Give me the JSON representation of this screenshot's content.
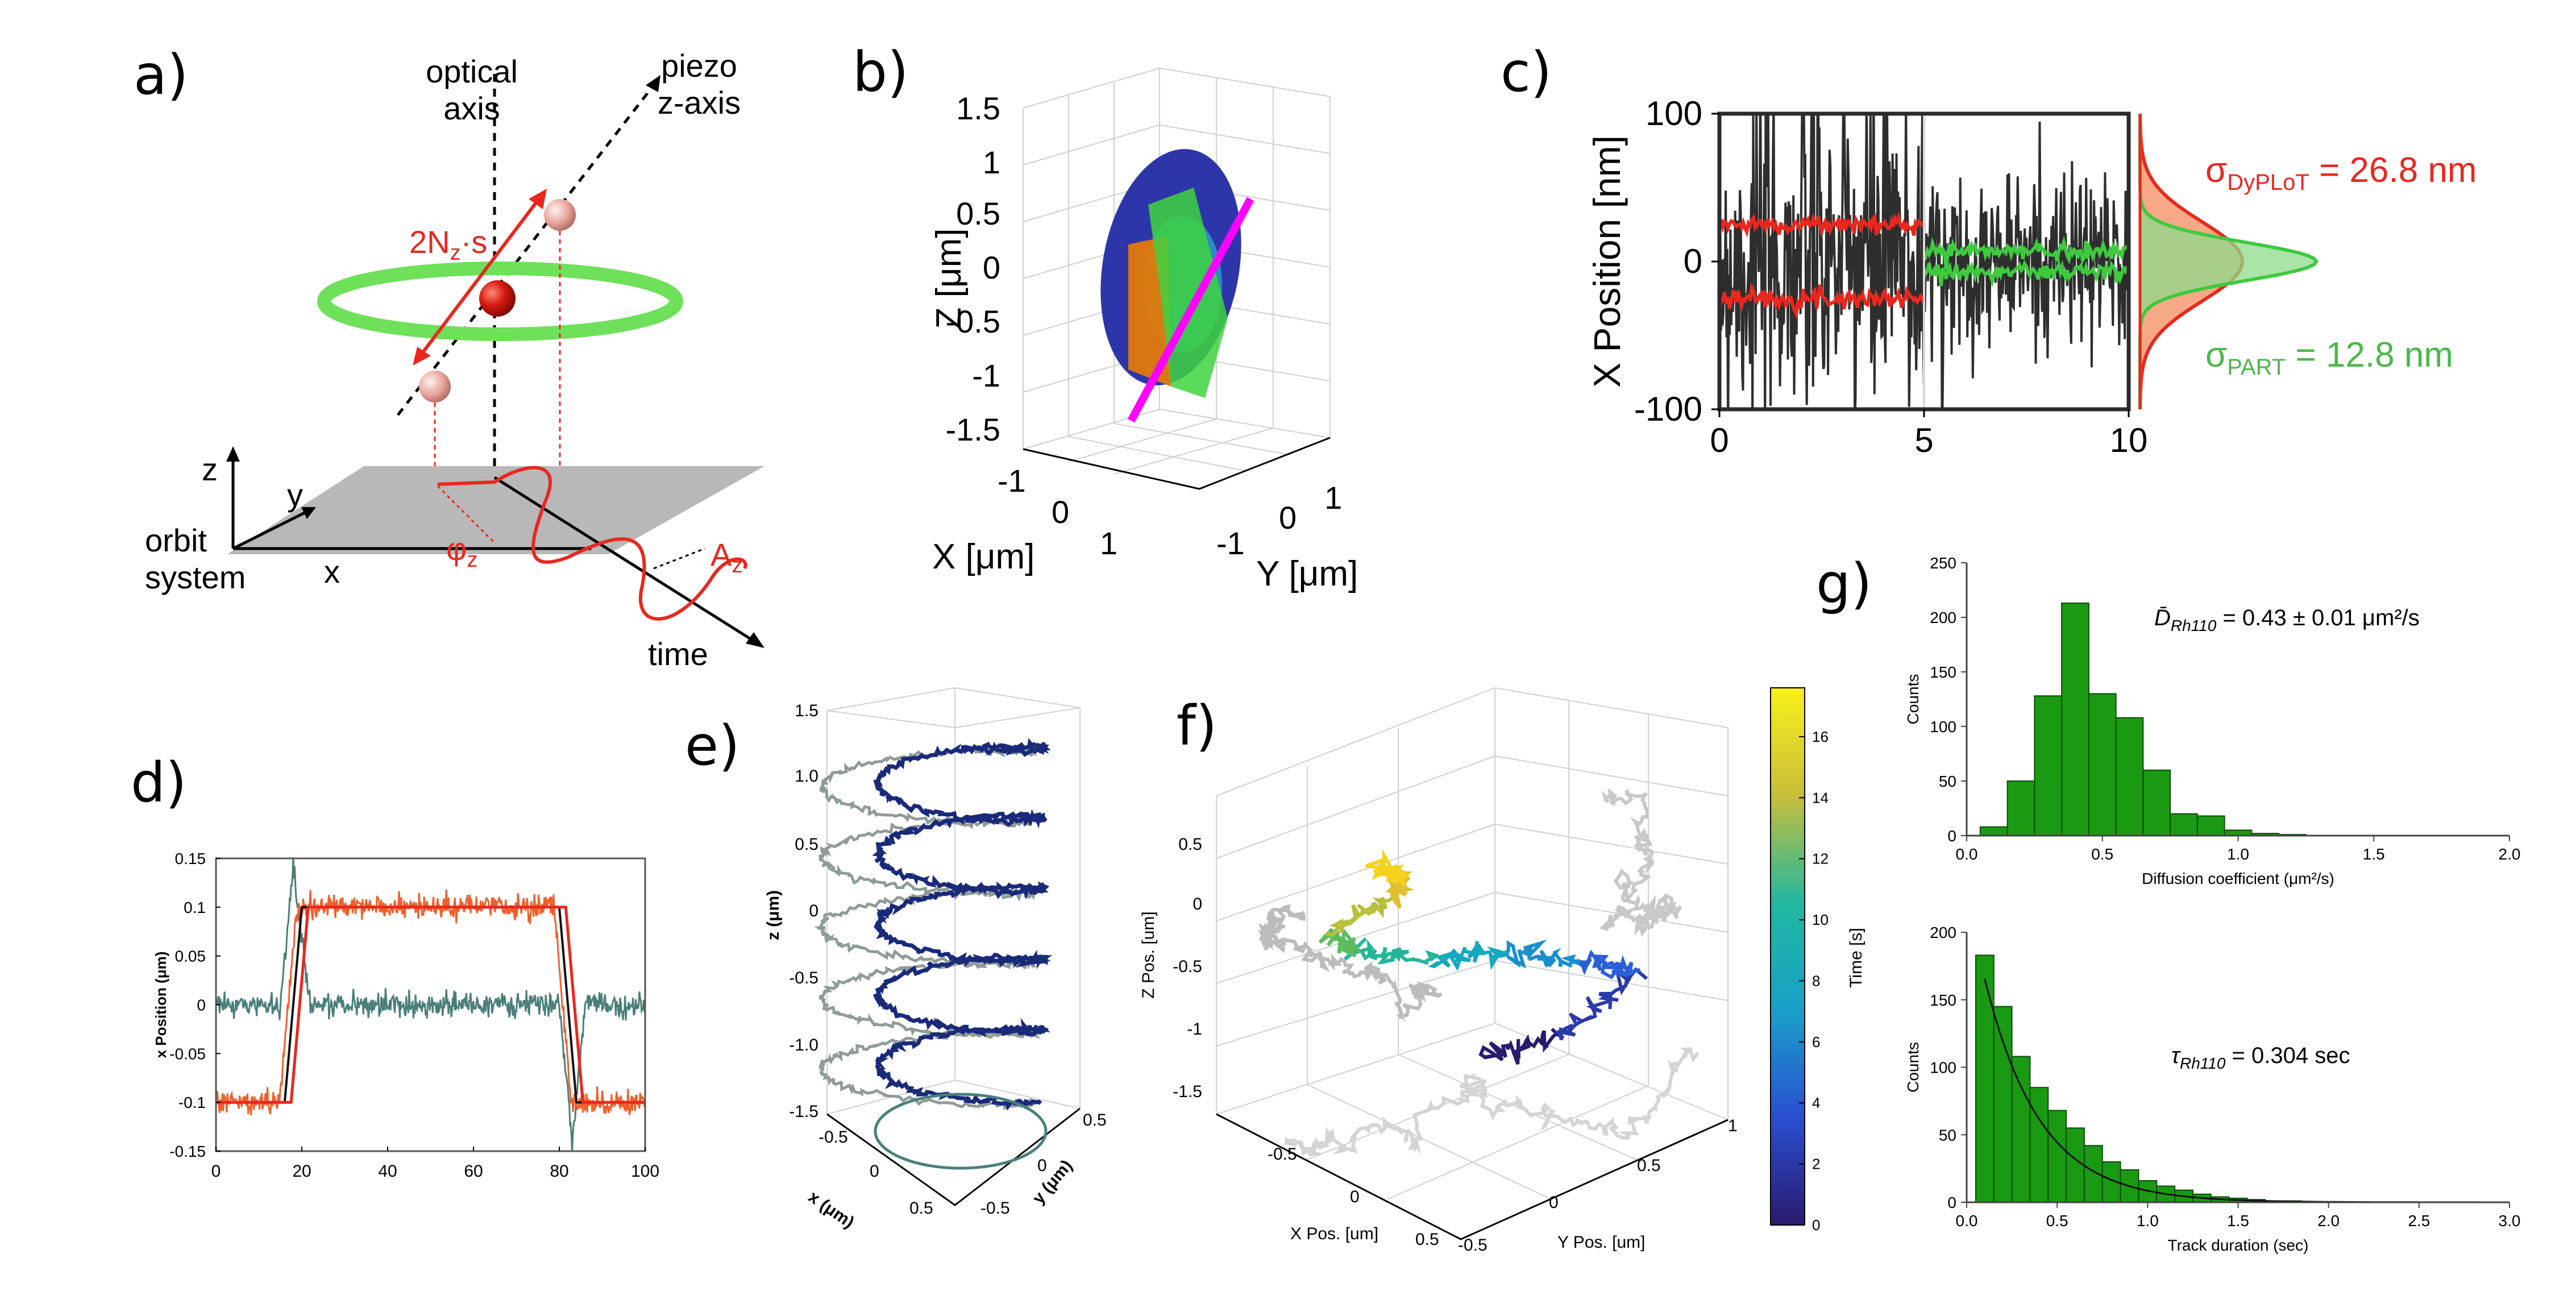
{
  "panels": {
    "a": {
      "label": "a)",
      "optical_axis": [
        "optical",
        "axis"
      ],
      "piezo_axis": [
        "piezo",
        "z-axis"
      ],
      "amplitude_label": "2N",
      "amplitude_sub": "z",
      "amplitude_suffix": "·s",
      "axis_z": "z",
      "axis_y": "y",
      "axis_x": "x",
      "orbit_system": [
        "orbit",
        "system"
      ],
      "phi_label": "φ",
      "phi_sub": "z",
      "az_label": "A",
      "az_sub": "z",
      "time_label": "time"
    },
    "b": {
      "label": "b)",
      "zlabel": "Z [μm]",
      "xlabel": "X [μm]",
      "ylabel": "Y [μm]",
      "zticks": [
        "1.5",
        "1",
        "0.5",
        "0",
        "-0.5",
        "-1",
        "-1.5"
      ],
      "xticks": [
        "-1",
        "0",
        "1"
      ],
      "yticks": [
        "1",
        "0",
        "-1"
      ]
    },
    "c": {
      "label": "c)",
      "sigma_dyplot_main": "σ",
      "sigma_dyplot_sub": "DyPLoT",
      "sigma_dyplot_val": " = 26.8 nm",
      "sigma_part_main": "σ",
      "sigma_part_sub": "PART",
      "sigma_part_val": " = 12.8 nm"
    },
    "d": {
      "label": "d)"
    },
    "e": {
      "label": "e)",
      "zlabel": "z (μm)",
      "xlabel": "x (μm)",
      "ylabel": "y (μm)",
      "zticks": [
        "1.5",
        "1.0",
        "0.5",
        "0",
        "-0.5",
        "-1.0",
        "-1.5"
      ],
      "xticks": [
        "-0.5",
        "0",
        "0.5"
      ],
      "yticks": [
        "0.5",
        "0",
        "-0.5"
      ]
    },
    "f": {
      "label": "f)",
      "zlabel": "Z Pos. [um]",
      "xlabel": "X Pos. [um]",
      "ylabel": "Y Pos. [um]",
      "colorbar_label": "Time [s]",
      "colorbar_ticks": [
        "16",
        "14",
        "12",
        "10",
        "8",
        "6",
        "4",
        "2",
        "0"
      ],
      "zticks": [
        "0.5",
        "0",
        "-0.5",
        "-1",
        "-1.5"
      ],
      "xticks": [
        "-0.5",
        "0",
        "0.5"
      ],
      "yticks": [
        "-0.5",
        "0",
        "0.5",
        "1"
      ]
    },
    "g": {
      "label": "g)",
      "top_annotation_sym": "D̄",
      "top_annotation_sub": "Rh110",
      "top_annotation_val": " = 0.43 ± 0.01 μm²/s",
      "bottom_annotation_sym": "τ",
      "bottom_annotation_sub": "Rh110",
      "bottom_annotation_val": " = 0.304 sec"
    }
  },
  "colors": {
    "red": "#e8281e",
    "green": "#3fc93f",
    "bar_green": "#1a9a12",
    "navy": "#1a2a7a",
    "grey": "#9aa0a0",
    "teal": "#4a7f7a",
    "magenta": "#ff00ff",
    "orange": "#e07a0a",
    "dark": "#2e2e2e",
    "plane": "#b8b8b8"
  },
  "chart_data": [
    {
      "id": "c",
      "type": "line",
      "xlabel": "",
      "ylabel": "X Position [nm]",
      "xlim": [
        0,
        10
      ],
      "ylim": [
        -100,
        100
      ],
      "xticks": [
        0,
        5,
        10
      ],
      "yticks": [
        -100,
        0,
        100
      ],
      "series": [
        {
          "name": "DyPLoT",
          "x_range": [
            0,
            5
          ],
          "noise_sd": 60,
          "mean_upper": 25,
          "mean_lower": -25
        },
        {
          "name": "PART",
          "x_range": [
            5,
            10
          ],
          "noise_sd": 30,
          "mean_upper": 7,
          "mean_lower": -7
        }
      ],
      "hist": [
        {
          "name": "DyPLoT",
          "sigma": 26.8
        },
        {
          "name": "PART",
          "sigma": 12.8
        }
      ]
    },
    {
      "id": "d",
      "type": "line",
      "xlabel": "",
      "ylabel": "x Position (μm)",
      "xlim": [
        0,
        100
      ],
      "ylim": [
        -0.15,
        0.15
      ],
      "xticks": [
        0,
        20,
        40,
        60,
        80,
        100
      ],
      "yticks": [
        0.15,
        0.1,
        0.05,
        0,
        -0.05,
        -0.1,
        -0.15
      ],
      "ytick_labels": [
        "0.15",
        "0.1",
        "0.05",
        "0",
        "-0.05",
        "-0.1",
        "-0.15"
      ],
      "step": {
        "low": -0.1,
        "high": 0.1,
        "rise": [
          16,
          20
        ],
        "fall": [
          80,
          84
        ]
      }
    },
    {
      "id": "g_top",
      "type": "bar",
      "xlabel": "Diffusion coefficient (μm²/s)",
      "ylabel": "Counts",
      "xlim": [
        0,
        2.0
      ],
      "ylim": [
        0,
        250
      ],
      "xticks": [
        0.0,
        0.5,
        1.0,
        1.5,
        2.0
      ],
      "xtick_labels": [
        "0.0",
        "0.5",
        "1.0",
        "1.5",
        "2.0"
      ],
      "yticks": [
        0,
        50,
        100,
        150,
        200,
        250
      ],
      "bin_width": 0.1,
      "bins": [
        0.1,
        0.2,
        0.3,
        0.4,
        0.5,
        0.6,
        0.7,
        0.8,
        0.9,
        1.0,
        1.1,
        1.2
      ],
      "values": [
        8,
        50,
        128,
        213,
        130,
        108,
        60,
        20,
        18,
        5,
        2,
        1
      ]
    },
    {
      "id": "g_bottom",
      "type": "bar",
      "xlabel": "Track duration (sec)",
      "ylabel": "Counts",
      "xlim": [
        0,
        3.0
      ],
      "ylim": [
        0,
        200
      ],
      "xticks": [
        0.0,
        0.5,
        1.0,
        1.5,
        2.0,
        2.5,
        3.0
      ],
      "xtick_labels": [
        "0.0",
        "0.5",
        "1.0",
        "1.5",
        "2.0",
        "2.5",
        "3.0"
      ],
      "yticks": [
        0,
        50,
        100,
        150,
        200
      ],
      "bin_width": 0.1,
      "bins": [
        0.1,
        0.2,
        0.3,
        0.4,
        0.5,
        0.6,
        0.7,
        0.8,
        0.9,
        1.0,
        1.1,
        1.2,
        1.3,
        1.4,
        1.5,
        1.6,
        1.7,
        1.8
      ],
      "values": [
        183,
        145,
        108,
        85,
        68,
        55,
        42,
        30,
        24,
        16,
        12,
        9,
        6,
        4,
        3,
        2,
        1,
        1
      ],
      "fit": {
        "tau": 0.304,
        "amplitude": 230
      }
    }
  ]
}
